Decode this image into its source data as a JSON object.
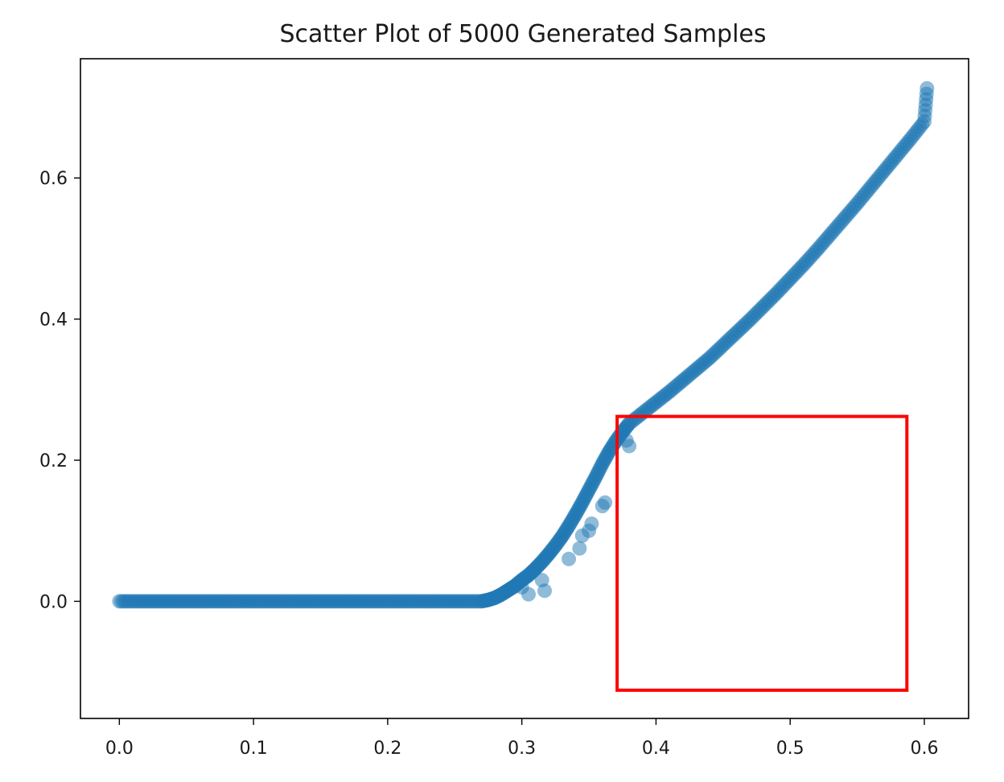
{
  "chart_data": {
    "type": "scatter",
    "title": "Scatter Plot of 5000 Generated Samples",
    "xlabel": "",
    "ylabel": "",
    "xlim": [
      -0.029,
      0.633
    ],
    "ylim": [
      -0.166,
      0.769
    ],
    "x_ticks": [
      0.0,
      0.1,
      0.2,
      0.3,
      0.4,
      0.5,
      0.6
    ],
    "x_tick_labels": [
      "0.0",
      "0.1",
      "0.2",
      "0.3",
      "0.4",
      "0.5",
      "0.6"
    ],
    "y_ticks": [
      0.0,
      0.2,
      0.4,
      0.6
    ],
    "y_tick_labels": [
      "0.0",
      "0.2",
      "0.4",
      "0.6"
    ],
    "grid": false,
    "legend": "none",
    "sample_count": 5000,
    "marker_color": "#1f77b4",
    "marker_alpha": 0.5,
    "series": [
      {
        "points": [
          [
            0.0,
            0.0
          ],
          [
            0.01,
            0.0
          ],
          [
            0.02,
            0.0
          ],
          [
            0.03,
            0.0
          ],
          [
            0.04,
            0.0
          ],
          [
            0.05,
            0.0
          ],
          [
            0.06,
            0.0
          ],
          [
            0.07,
            0.0
          ],
          [
            0.08,
            0.0
          ],
          [
            0.09,
            0.0
          ],
          [
            0.1,
            0.0
          ],
          [
            0.11,
            0.0
          ],
          [
            0.12,
            0.0
          ],
          [
            0.13,
            0.0
          ],
          [
            0.14,
            0.0
          ],
          [
            0.15,
            0.0
          ],
          [
            0.16,
            0.0
          ],
          [
            0.17,
            0.0
          ],
          [
            0.18,
            0.0
          ],
          [
            0.19,
            0.0
          ],
          [
            0.2,
            0.0
          ],
          [
            0.21,
            0.0
          ],
          [
            0.22,
            0.0
          ],
          [
            0.23,
            0.0
          ],
          [
            0.24,
            0.0
          ],
          [
            0.25,
            0.0
          ],
          [
            0.26,
            0.0
          ],
          [
            0.27,
            0.0
          ],
          [
            0.275,
            0.002
          ],
          [
            0.28,
            0.005
          ],
          [
            0.285,
            0.01
          ],
          [
            0.29,
            0.016
          ],
          [
            0.295,
            0.022
          ],
          [
            0.3,
            0.03
          ],
          [
            0.305,
            0.037
          ],
          [
            0.31,
            0.046
          ],
          [
            0.315,
            0.056
          ],
          [
            0.32,
            0.067
          ],
          [
            0.325,
            0.079
          ],
          [
            0.33,
            0.092
          ],
          [
            0.335,
            0.107
          ],
          [
            0.34,
            0.123
          ],
          [
            0.345,
            0.14
          ],
          [
            0.35,
            0.158
          ],
          [
            0.355,
            0.176
          ],
          [
            0.36,
            0.195
          ],
          [
            0.365,
            0.212
          ],
          [
            0.37,
            0.227
          ],
          [
            0.375,
            0.24
          ],
          [
            0.38,
            0.252
          ],
          [
            0.39,
            0.267
          ],
          [
            0.4,
            0.282
          ],
          [
            0.41,
            0.297
          ],
          [
            0.42,
            0.313
          ],
          [
            0.43,
            0.329
          ],
          [
            0.44,
            0.345
          ],
          [
            0.45,
            0.363
          ],
          [
            0.46,
            0.381
          ],
          [
            0.47,
            0.399
          ],
          [
            0.48,
            0.418
          ],
          [
            0.49,
            0.437
          ],
          [
            0.5,
            0.457
          ],
          [
            0.51,
            0.477
          ],
          [
            0.52,
            0.498
          ],
          [
            0.53,
            0.52
          ],
          [
            0.54,
            0.542
          ],
          [
            0.55,
            0.564
          ],
          [
            0.56,
            0.587
          ],
          [
            0.57,
            0.61
          ],
          [
            0.58,
            0.633
          ],
          [
            0.59,
            0.656
          ],
          [
            0.6,
            0.68
          ],
          [
            0.602,
            0.727
          ],
          [
            0.3,
            0.02
          ],
          [
            0.305,
            0.01
          ],
          [
            0.315,
            0.03
          ],
          [
            0.317,
            0.015
          ],
          [
            0.335,
            0.06
          ],
          [
            0.343,
            0.075
          ],
          [
            0.345,
            0.093
          ],
          [
            0.35,
            0.1
          ],
          [
            0.352,
            0.11
          ],
          [
            0.36,
            0.135
          ],
          [
            0.362,
            0.14
          ],
          [
            0.38,
            0.22
          ],
          [
            0.378,
            0.228
          ]
        ]
      }
    ],
    "annotation": {
      "shape": "rectangle",
      "color": "#ff0000",
      "x_range": [
        0.371,
        0.587
      ],
      "y_range": [
        -0.126,
        0.262
      ]
    }
  }
}
